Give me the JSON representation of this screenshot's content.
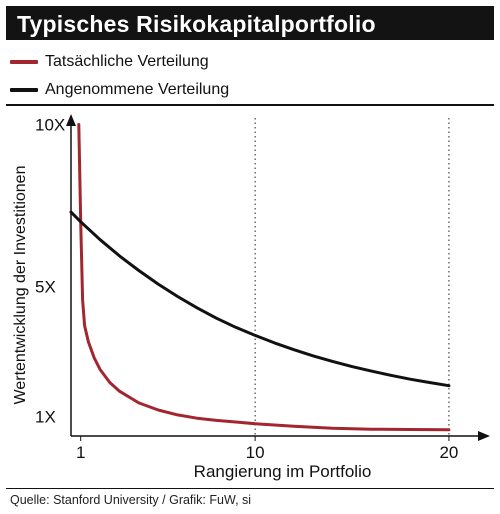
{
  "title": "Typisches Risikokapitalportfolio",
  "source": "Quelle: Stanford University / Grafik: FuW, si",
  "colors": {
    "actual": "#A3262F",
    "assumed": "#111111",
    "title_bg": "#131313"
  },
  "legend": [
    {
      "label": "Tatsächliche Verteilung",
      "color": "#A3262F"
    },
    {
      "label": "Angenommene Verteilung",
      "color": "#111111"
    }
  ],
  "chart_data": {
    "type": "line",
    "xlabel": "Rangierung im Portfolio",
    "ylabel": "Wertentwicklung der Investitionen",
    "x_ticks": [
      {
        "value": 1,
        "label": "1"
      },
      {
        "value": 10,
        "label": "10"
      },
      {
        "value": 20,
        "label": "20"
      }
    ],
    "y_ticks": [
      {
        "value": 1,
        "label": "1X"
      },
      {
        "value": 5,
        "label": "5X"
      },
      {
        "value": 10,
        "label": "10X"
      }
    ],
    "xlim": [
      0.5,
      21.5
    ],
    "ylim": [
      0.4,
      10.2
    ],
    "vertical_guides": [
      10,
      20
    ],
    "legend_position": "top-left",
    "series": [
      {
        "name": "Tatsächliche Verteilung",
        "color": "#A3262F",
        "x": [
          0.9,
          1.0,
          1.1,
          1.2,
          1.4,
          1.7,
          2,
          2.5,
          3,
          4,
          5,
          6,
          7,
          8,
          9,
          10,
          12,
          14,
          16,
          18,
          20
        ],
        "y": [
          10.0,
          7.0,
          4.6,
          3.8,
          3.3,
          2.8,
          2.45,
          2.05,
          1.78,
          1.42,
          1.2,
          1.05,
          0.95,
          0.88,
          0.83,
          0.78,
          0.7,
          0.64,
          0.61,
          0.6,
          0.59
        ]
      },
      {
        "name": "Angenommene Verteilung",
        "color": "#111111",
        "x": [
          0.5,
          1,
          2,
          3,
          4,
          5,
          6,
          7,
          8,
          9,
          10,
          11,
          12,
          13,
          14,
          15,
          16,
          17,
          18,
          19,
          20
        ],
        "y": [
          7.3,
          7.0,
          6.45,
          5.95,
          5.5,
          5.08,
          4.7,
          4.35,
          4.03,
          3.75,
          3.5,
          3.27,
          3.06,
          2.87,
          2.7,
          2.54,
          2.4,
          2.27,
          2.15,
          2.05,
          1.95
        ]
      }
    ]
  }
}
